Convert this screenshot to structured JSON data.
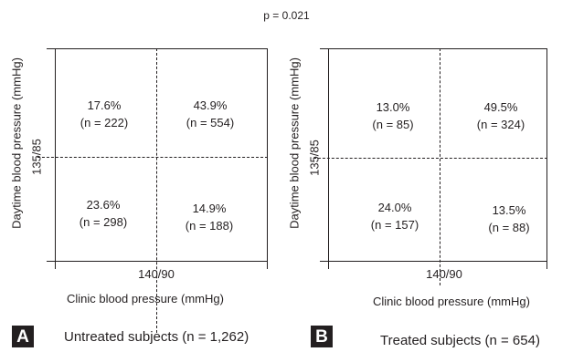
{
  "header": {
    "p_value": "p = 0.021"
  },
  "panels": [
    {
      "letter": "A",
      "caption": "Untreated subjects (n = 1,262)",
      "y_axis_label": "Daytime blood pressure (mmHg)",
      "y_threshold": "135/85",
      "x_axis_label": "Clinic blood pressure (mmHg)",
      "x_threshold": "140/90",
      "cells": {
        "top_left": {
          "percent": "17.6%",
          "n": "(n = 222)"
        },
        "top_right": {
          "percent": "43.9%",
          "n": "(n = 554)"
        },
        "bottom_left": {
          "percent": "23.6%",
          "n": "(n = 298)"
        },
        "bottom_right": {
          "percent": "14.9%",
          "n": "(n = 188)"
        }
      }
    },
    {
      "letter": "B",
      "caption": "Treated subjects (n = 654)",
      "y_axis_label": "Daytime blood pressure (mmHg)",
      "y_threshold": "135/85",
      "x_axis_label": "Clinic blood pressure (mmHg)",
      "x_threshold": "140/90",
      "cells": {
        "top_left": {
          "percent": "13.0%",
          "n": "(n = 85)"
        },
        "top_right": {
          "percent": "49.5%",
          "n": "(n = 324)"
        },
        "bottom_left": {
          "percent": "24.0%",
          "n": "(n = 157)"
        },
        "bottom_right": {
          "percent": "13.5%",
          "n": "(n = 88)"
        }
      }
    }
  ]
}
